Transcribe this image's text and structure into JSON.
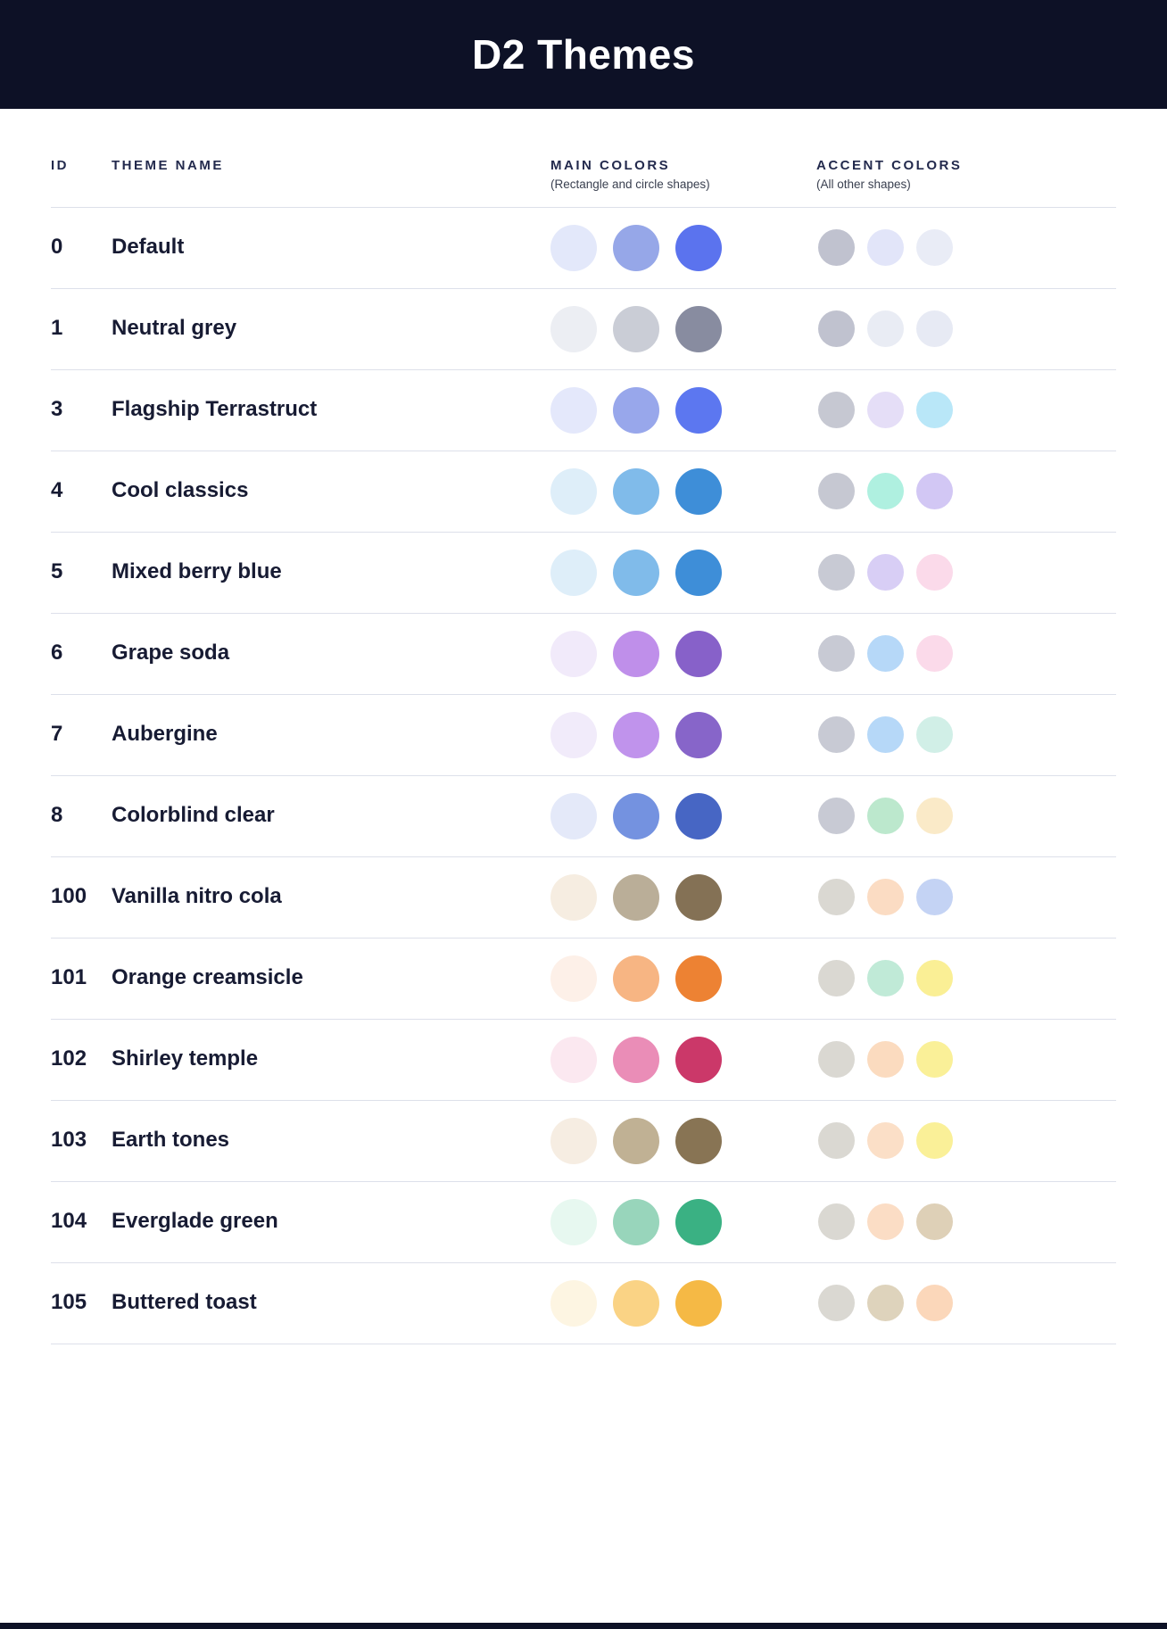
{
  "header": {
    "title": "D2 Themes"
  },
  "colors": {
    "banner_bg": "#0D1126",
    "divider": "#DDE0EA",
    "heading_text": "#232A4D",
    "row_text": "#171B33",
    "page_bg": "#FFFFFF"
  },
  "table": {
    "columns": {
      "id": "ID",
      "theme_name": "THEME NAME",
      "main_colors": "MAIN COLORS",
      "main_colors_sub": "(Rectangle and circle shapes)",
      "accent_colors": "ACCENT COLORS",
      "accent_colors_sub": "(All other shapes)"
    },
    "rows": [
      {
        "id": "0",
        "name": "Default",
        "main": [
          "#E3E8FA",
          "#96A7E8",
          "#5B73EE"
        ],
        "accent": [
          "#C0C2CF",
          "#E2E5F9",
          "#E9ECF6"
        ]
      },
      {
        "id": "1",
        "name": "Neutral grey",
        "main": [
          "#ECEEF3",
          "#CACDD6",
          "#888CA0"
        ],
        "accent": [
          "#C0C2CF",
          "#E9ECF4",
          "#E7EAF4"
        ]
      },
      {
        "id": "3",
        "name": "Flagship Terrastruct",
        "main": [
          "#E4E8FB",
          "#98A7EB",
          "#5C77F0"
        ],
        "accent": [
          "#C6C8D2",
          "#E5DEF7",
          "#B9E7F8"
        ]
      },
      {
        "id": "4",
        "name": "Cool classics",
        "main": [
          "#DEEEF9",
          "#80BBEA",
          "#3E8ED8"
        ],
        "accent": [
          "#C6C8D2",
          "#AFF0E0",
          "#D2C7F4"
        ]
      },
      {
        "id": "5",
        "name": "Mixed berry blue",
        "main": [
          "#DEEEF9",
          "#80BBEA",
          "#3E8ED8"
        ],
        "accent": [
          "#C8CAD4",
          "#D8CEF5",
          "#FBDAEA"
        ]
      },
      {
        "id": "6",
        "name": "Grape soda",
        "main": [
          "#F1EAFA",
          "#BF8FEA",
          "#8761C9"
        ],
        "accent": [
          "#C8CAD4",
          "#B6D8F8",
          "#FBDAEA"
        ]
      },
      {
        "id": "7",
        "name": "Aubergine",
        "main": [
          "#F1EBFA",
          "#C093EC",
          "#8765C9"
        ],
        "accent": [
          "#C8CAD4",
          "#B6D8F8",
          "#D1EFE7"
        ]
      },
      {
        "id": "8",
        "name": "Colorblind clear",
        "main": [
          "#E4E9F9",
          "#7492E0",
          "#4766C4"
        ],
        "accent": [
          "#C8CAD4",
          "#BCE8CD",
          "#FAEAC8"
        ]
      },
      {
        "id": "100",
        "name": "Vanilla nitro cola",
        "main": [
          "#F6EDE1",
          "#BAAE98",
          "#847155"
        ],
        "accent": [
          "#DAD8D2",
          "#FBDCC3",
          "#C4D3F4"
        ]
      },
      {
        "id": "101",
        "name": "Orange creamsicle",
        "main": [
          "#FDF0E8",
          "#F7B583",
          "#ED8233"
        ],
        "accent": [
          "#DAD8D2",
          "#C0EAD7",
          "#FAEF95"
        ]
      },
      {
        "id": "102",
        "name": "Shirley temple",
        "main": [
          "#FBE8F0",
          "#EA8DB7",
          "#CB3869"
        ],
        "accent": [
          "#DAD8D2",
          "#FBDBBF",
          "#FAF098"
        ]
      },
      {
        "id": "103",
        "name": "Earth tones",
        "main": [
          "#F6EDE2",
          "#C0B194",
          "#887454"
        ],
        "accent": [
          "#DAD8D2",
          "#FBDFC7",
          "#FAF098"
        ]
      },
      {
        "id": "104",
        "name": "Everglade green",
        "main": [
          "#E7F8F0",
          "#98D5BB",
          "#3AB183"
        ],
        "accent": [
          "#DAD8D2",
          "#FBDDC5",
          "#DED0B7"
        ]
      },
      {
        "id": "105",
        "name": "Buttered toast",
        "main": [
          "#FDF5E2",
          "#FAD385",
          "#F5B945"
        ],
        "accent": [
          "#DAD8D2",
          "#DED3BC",
          "#FBD7BA"
        ]
      }
    ]
  }
}
